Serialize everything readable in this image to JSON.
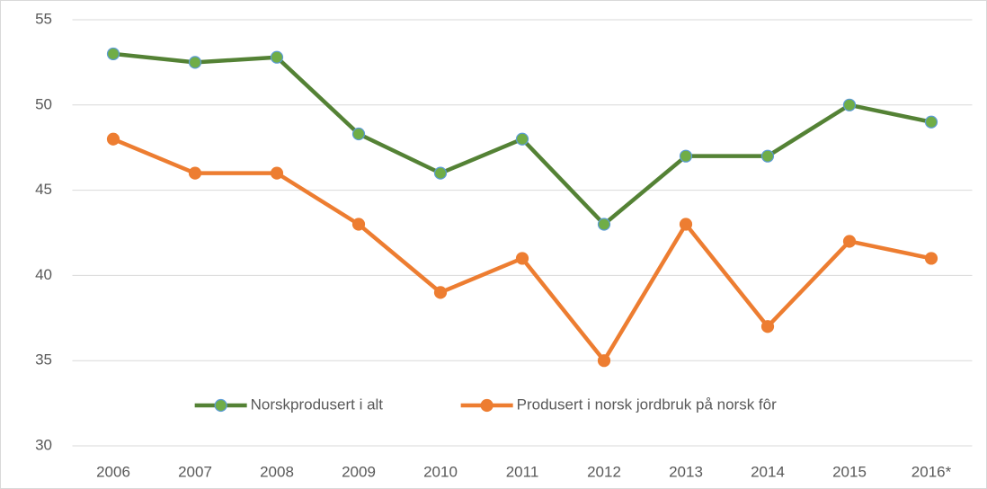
{
  "chart_data": {
    "type": "line",
    "categories": [
      "2006",
      "2007",
      "2008",
      "2009",
      "2010",
      "2011",
      "2012",
      "2013",
      "2014",
      "2015",
      "2016*"
    ],
    "series": [
      {
        "name": "Norskprodusert i alt",
        "color": "#548235",
        "marker_color": "#70ad47",
        "marker_edge": "#5b9bd5",
        "values": [
          53,
          52.5,
          52.8,
          48.3,
          46,
          48,
          43,
          47,
          47,
          50,
          49
        ]
      },
      {
        "name": "Produsert i norsk jordbruk på norsk fôr",
        "color": "#ed7d31",
        "marker_color": "#ed7d31",
        "marker_edge": "#ed7d31",
        "values": [
          48,
          46,
          46,
          43,
          39,
          41,
          35,
          43,
          37,
          42,
          41
        ]
      }
    ],
    "ylim": [
      30,
      55
    ],
    "yticks": [
      30,
      35,
      40,
      45,
      50,
      55
    ],
    "grid": true,
    "legend": "bottom"
  }
}
